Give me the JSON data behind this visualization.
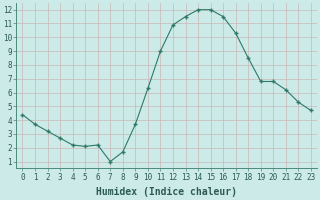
{
  "x": [
    0,
    1,
    2,
    3,
    4,
    5,
    6,
    7,
    8,
    9,
    10,
    11,
    12,
    13,
    14,
    15,
    16,
    17,
    18,
    19,
    20,
    21,
    22,
    23
  ],
  "y": [
    4.4,
    3.7,
    3.2,
    2.7,
    2.2,
    2.1,
    2.2,
    1.0,
    1.7,
    3.7,
    6.3,
    9.0,
    10.9,
    11.5,
    12.0,
    12.0,
    11.5,
    10.3,
    8.5,
    6.8,
    6.8,
    6.2,
    5.3,
    4.7
  ],
  "line_color": "#2d7a68",
  "marker": "+",
  "marker_size": 3.5,
  "xlabel": "Humidex (Indice chaleur)",
  "xlim": [
    -0.5,
    23.5
  ],
  "ylim": [
    0.5,
    12.5
  ],
  "yticks": [
    1,
    2,
    3,
    4,
    5,
    6,
    7,
    8,
    9,
    10,
    11,
    12
  ],
  "xticks": [
    0,
    1,
    2,
    3,
    4,
    5,
    6,
    7,
    8,
    9,
    10,
    11,
    12,
    13,
    14,
    15,
    16,
    17,
    18,
    19,
    20,
    21,
    22,
    23
  ],
  "grid_color_h": "#c8b8b8",
  "grid_color_v": "#c8b8b8",
  "bg_color": "#cceae8",
  "fig_bg_color": "#cceae8",
  "xlabel_fontsize": 7,
  "tick_fontsize": 5.5,
  "tick_color": "#2d5a52",
  "label_color": "#2d5a52"
}
